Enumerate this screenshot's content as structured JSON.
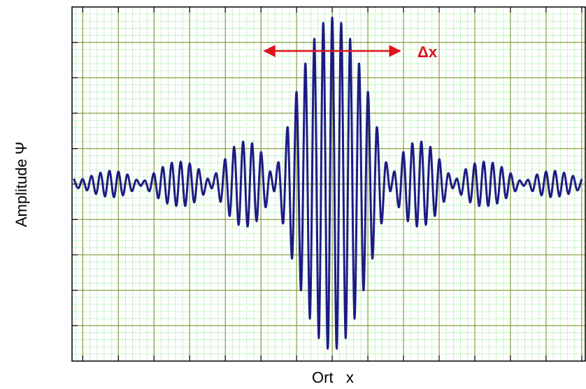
{
  "chart_data": {
    "type": "line",
    "xlabel": "Ort   x",
    "ylabel": "Amplitude Ψ",
    "annotation": "Δx",
    "xlim": [
      -7.3,
      7.1
    ],
    "ylim": [
      -5,
      5
    ],
    "xticks": [
      -7,
      -6,
      -5,
      -4,
      -3,
      -2,
      -1,
      0,
      1,
      2,
      3,
      4,
      5,
      6,
      7
    ],
    "yticks": [
      -4,
      -3,
      -2,
      -1,
      0,
      1,
      2,
      3,
      4
    ],
    "grid": true,
    "minor_subdivisions": 5,
    "series": [
      {
        "color": "#1c1c84",
        "x": [
          -7.25,
          -7.125,
          -7,
          -6.875,
          -6.75,
          -6.625,
          -6.5,
          -6.375,
          -6.25,
          -6.125,
          -6,
          -5.875,
          -5.75,
          -5.625,
          -5.5,
          -5.375,
          -5.25,
          -5.125,
          -5,
          -4.875,
          -4.75,
          -4.625,
          -4.5,
          -4.375,
          -4.25,
          -4.125,
          -4,
          -3.875,
          -3.75,
          -3.625,
          -3.5,
          -3.375,
          -3.25,
          -3.125,
          -3,
          -2.875,
          -2.75,
          -2.625,
          -2.5,
          -2.375,
          -2.25,
          -2.125,
          -2,
          -1.875,
          -1.75,
          -1.625,
          -1.5,
          -1.375,
          -1.25,
          -1.125,
          -1,
          -0.875,
          -0.75,
          -0.625,
          -0.5,
          -0.375,
          -0.25,
          -0.125,
          0,
          0.125,
          0.25,
          0.375,
          0.5,
          0.625,
          0.75,
          0.875,
          1,
          1.125,
          1.25,
          1.375,
          1.5,
          1.625,
          1.75,
          1.875,
          2,
          2.125,
          2.25,
          2.375,
          2.5,
          2.625,
          2.75,
          2.875,
          3,
          3.125,
          3.25,
          3.375,
          3.5,
          3.625,
          3.75,
          3.875,
          4,
          4.125,
          4.25,
          4.375,
          4.5,
          4.625,
          4.75,
          4.875,
          5,
          5.125,
          5.25,
          5.375,
          5.5,
          5.625,
          5.75,
          5.875,
          6,
          6.125,
          6.25,
          6.375,
          6.5,
          6.625,
          6.75,
          6.875,
          7
        ],
        "values": [
          0.15,
          -0.12,
          0.14,
          -0.18,
          0.23,
          -0.28,
          0.32,
          -0.35,
          0.37,
          -0.37,
          0.35,
          -0.32,
          0.27,
          -0.2,
          0.12,
          -0.05,
          0.1,
          -0.2,
          0.3,
          -0.4,
          0.48,
          -0.55,
          0.6,
          -0.62,
          0.63,
          -0.62,
          0.58,
          -0.52,
          0.42,
          -0.3,
          0.15,
          -0.12,
          0.3,
          -0.5,
          0.7,
          -0.9,
          1.05,
          -1.15,
          1.2,
          -1.2,
          1.15,
          -1.05,
          0.9,
          -0.65,
          0.35,
          -0.2,
          0.6,
          -1.1,
          1.6,
          -2.1,
          2.6,
          -3.0,
          3.4,
          -3.8,
          4.1,
          -4.35,
          4.55,
          -4.65,
          4.7,
          -4.65,
          4.55,
          -4.35,
          4.1,
          -3.8,
          3.4,
          -3.0,
          2.6,
          -2.1,
          1.6,
          -1.1,
          0.6,
          -0.2,
          0.35,
          -0.65,
          0.9,
          -1.05,
          1.15,
          -1.2,
          1.2,
          -1.15,
          1.05,
          -0.9,
          0.7,
          -0.5,
          0.3,
          -0.12,
          0.15,
          -0.3,
          0.42,
          -0.52,
          0.58,
          -0.62,
          0.63,
          -0.62,
          0.6,
          -0.55,
          0.48,
          -0.4,
          0.3,
          -0.2,
          0.1,
          -0.05,
          0.12,
          -0.2,
          0.27,
          -0.32,
          0.35,
          -0.37,
          0.37,
          -0.35,
          0.32,
          -0.28,
          0.23,
          -0.18,
          0.14
        ]
      }
    ]
  }
}
